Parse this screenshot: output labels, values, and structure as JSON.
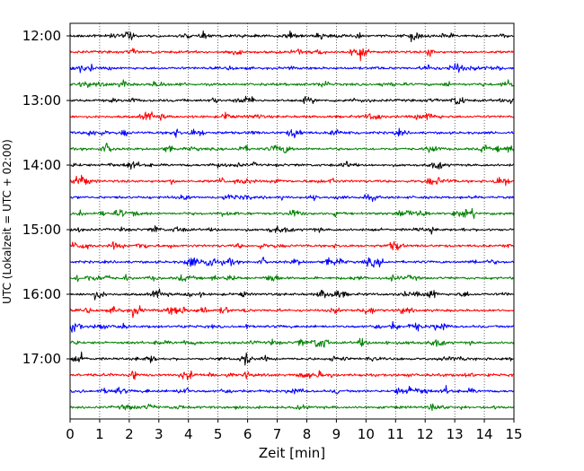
{
  "chart_data": {
    "type": "line",
    "subtype": "helicorder",
    "xlabel": "Zeit  [min]",
    "ylabel": "UTC (Lokalzeit = UTC + 02:00)",
    "xlim": [
      0,
      15
    ],
    "x_ticks": [
      0,
      1,
      2,
      3,
      4,
      5,
      6,
      7,
      8,
      9,
      10,
      11,
      12,
      13,
      14,
      15
    ],
    "x_tick_labels": [
      "0",
      "1",
      "2",
      "3",
      "4",
      "5",
      "6",
      "7",
      "8",
      "9",
      "10",
      "11",
      "12",
      "13",
      "14",
      "15"
    ],
    "y_tick_labels": [
      "12:00",
      "13:00",
      "14:00",
      "15:00",
      "16:00",
      "17:00"
    ],
    "minutes_per_trace": 15,
    "trace_count": 24,
    "trace_colors": [
      "#000000",
      "#ff0000",
      "#0000ff",
      "#008000"
    ],
    "vertical_grid": true,
    "grid_style": "dotted"
  }
}
